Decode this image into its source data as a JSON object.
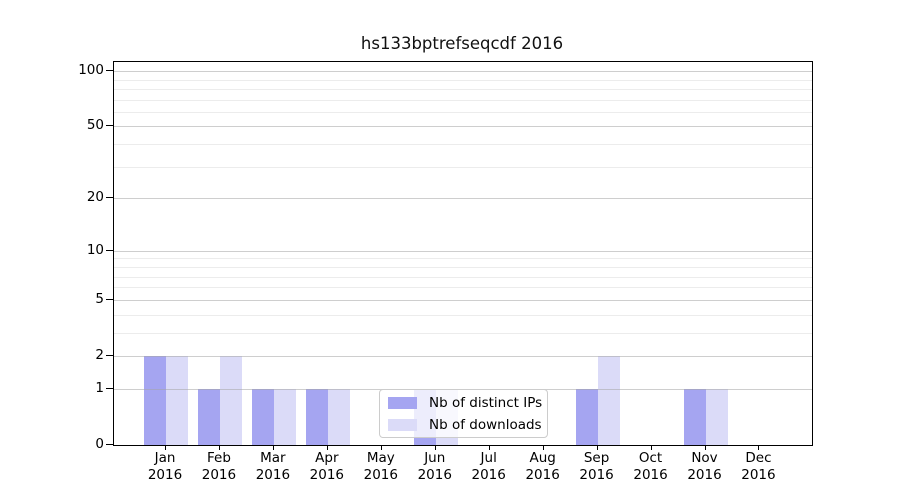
{
  "figure": {
    "title": "hs133bptrefseqcdf 2016"
  },
  "colors": {
    "distinct_ips": "#a5a5f1",
    "downloads": "#dbdbf8",
    "major_grid": "rgba(165,165,165,0.55)",
    "minor_grid": "rgba(223,223,223,0.6)",
    "spine": "#000000",
    "background": "#ffffff"
  },
  "legend": {
    "items": [
      {
        "label": "Nb of distinct IPs"
      },
      {
        "label": "Nb of downloads"
      }
    ]
  },
  "chart_data": {
    "type": "bar",
    "title": "hs133bptrefseqcdf 2016",
    "categories": [
      "Jan",
      "Feb",
      "Mar",
      "Apr",
      "May",
      "Jun",
      "Jul",
      "Aug",
      "Sep",
      "Oct",
      "Nov",
      "Dec"
    ],
    "year_label": "2016",
    "series": [
      {
        "name": "Nb of distinct IPs",
        "color": "#a5a5f1",
        "values": [
          2,
          1,
          1,
          1,
          0,
          1,
          0,
          0,
          1,
          0,
          1,
          0
        ]
      },
      {
        "name": "Nb of downloads",
        "color": "#dbdbf8",
        "values": [
          2,
          2,
          1,
          1,
          0,
          1,
          0,
          0,
          2,
          0,
          1,
          0
        ]
      }
    ],
    "yscale": "log1p",
    "ylim": [
      0,
      112
    ],
    "yticks": [
      100,
      50,
      20,
      10,
      5,
      2,
      1,
      0
    ],
    "minor_gridlines": [
      3,
      4,
      6,
      7,
      8,
      9,
      30,
      40,
      60,
      70,
      80,
      90
    ],
    "grid": true,
    "legend_position": "lower-center-inside",
    "xlabel": "",
    "ylabel": ""
  }
}
